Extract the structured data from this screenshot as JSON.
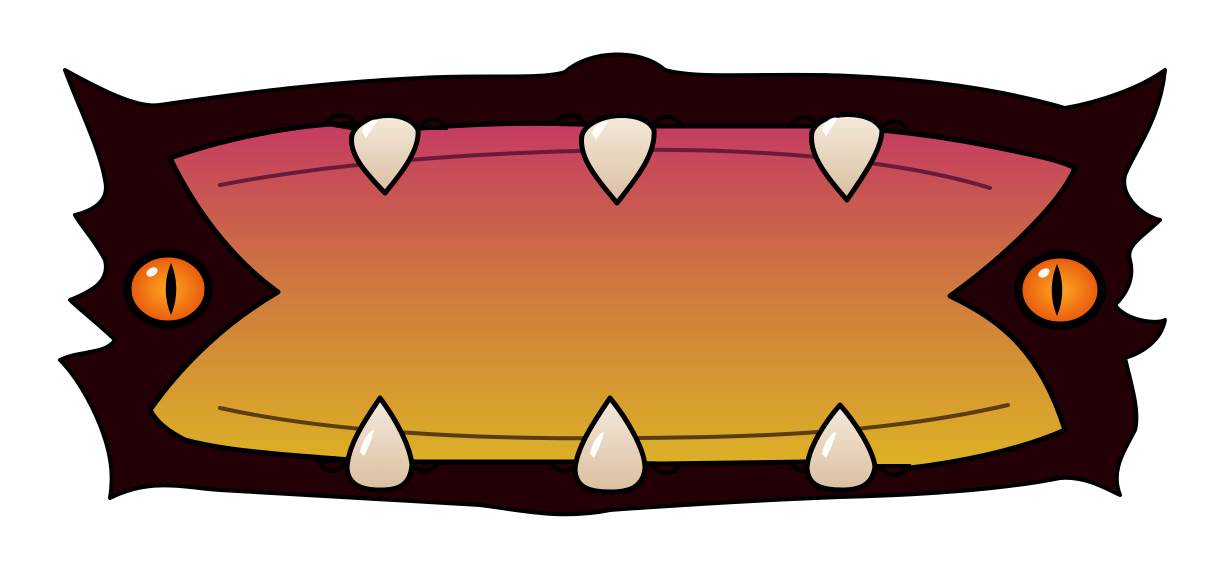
{
  "window": {
    "title": ""
  },
  "panel": {
    "type": "monster-mouth-frame",
    "label": "",
    "eyes": [
      "left-eye",
      "right-eye"
    ],
    "teeth_top_count": 3,
    "teeth_bottom_count": 3
  },
  "colors": {
    "frame_dark": "#220006",
    "outline": "#000000",
    "mouth_top": "#c43a62",
    "mouth_mid": "#cf7c3c",
    "mouth_bottom": "#ddb225",
    "lip_line_top": "#6a1b3a",
    "lip_line_bottom": "#5a3d12",
    "eye_outer": "#e85a0c",
    "eye_inner": "#ffa623",
    "pupil": "#000000",
    "tooth_light": "#f5eadc",
    "tooth_shade": "#d9bfa0",
    "highlight": "#ffffff"
  }
}
